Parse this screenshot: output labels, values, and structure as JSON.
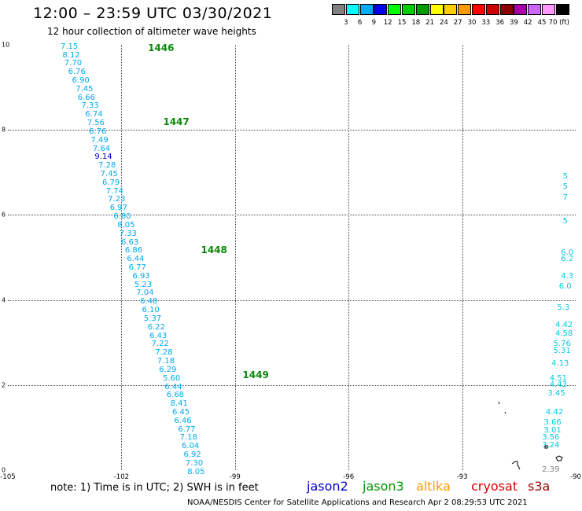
{
  "title": "12:00 – 23:59 UTC 03/30/2021",
  "subtitle": "12 hour collection of altimeter wave heights",
  "colorbar": {
    "colors": [
      "#808080",
      "#00ffff",
      "#00aaff",
      "#0000ee",
      "#00ff00",
      "#00cc00",
      "#009900",
      "#ffff00",
      "#ffcc00",
      "#ff9900",
      "#ff0000",
      "#cc0000",
      "#880000",
      "#aa00aa",
      "#cc66ff",
      "#ff99ff",
      "#000000"
    ],
    "labels": [
      "3",
      "6",
      "9",
      "12",
      "15",
      "18",
      "21",
      "24",
      "27",
      "30",
      "33",
      "36",
      "39",
      "42",
      "45",
      "70 (ft)"
    ]
  },
  "axes": {
    "x_ticks": [
      "-105",
      "-102",
      "-99",
      "-96",
      "-93",
      "-90"
    ],
    "y_ticks": [
      "0",
      "2",
      "4",
      "6",
      "8",
      "10"
    ],
    "xlim": [
      -105,
      -90
    ],
    "ylim": [
      0,
      10
    ]
  },
  "orbits": [
    {
      "label": "1446",
      "lon": -101.3,
      "lat": 9.95
    },
    {
      "label": "1447",
      "lon": -100.9,
      "lat": 8.2
    },
    {
      "label": "1448",
      "lon": -99.9,
      "lat": 5.2
    },
    {
      "label": "1449",
      "lon": -98.8,
      "lat": 2.25
    }
  ],
  "track_main": [
    {
      "v": "7.15",
      "lon": -103.4,
      "lat": 9.95,
      "c": "#00aaee"
    },
    {
      "v": "8.12",
      "lon": -103.35,
      "lat": 9.75,
      "c": "#00aaee"
    },
    {
      "v": "7.70",
      "lon": -103.3,
      "lat": 9.55,
      "c": "#00aaee"
    },
    {
      "v": "6.76",
      "lon": -103.2,
      "lat": 9.35,
      "c": "#00aaee"
    },
    {
      "v": "6.90",
      "lon": -103.1,
      "lat": 9.15,
      "c": "#00aaee"
    },
    {
      "v": "7.45",
      "lon": -103.0,
      "lat": 8.95,
      "c": "#00aaee"
    },
    {
      "v": "6.66",
      "lon": -102.95,
      "lat": 8.75,
      "c": "#00aaee"
    },
    {
      "v": "7.33",
      "lon": -102.85,
      "lat": 8.55,
      "c": "#00aaee"
    },
    {
      "v": "6.74",
      "lon": -102.75,
      "lat": 8.35,
      "c": "#00aaee"
    },
    {
      "v": "7.56",
      "lon": -102.7,
      "lat": 8.15,
      "c": "#00aaee"
    },
    {
      "v": "6.76",
      "lon": -102.65,
      "lat": 7.95,
      "c": "#00aaee"
    },
    {
      "v": "7.49",
      "lon": -102.6,
      "lat": 7.75,
      "c": "#00aaee"
    },
    {
      "v": "7.64",
      "lon": -102.55,
      "lat": 7.55,
      "c": "#00aaee"
    },
    {
      "v": "9.14",
      "lon": -102.5,
      "lat": 7.35,
      "c": "#0000bb"
    },
    {
      "v": "7.28",
      "lon": -102.4,
      "lat": 7.15,
      "c": "#00aaee"
    },
    {
      "v": "7.45",
      "lon": -102.35,
      "lat": 6.95,
      "c": "#00aaee"
    },
    {
      "v": "6.79",
      "lon": -102.3,
      "lat": 6.75,
      "c": "#00aaee"
    },
    {
      "v": "7.74",
      "lon": -102.2,
      "lat": 6.55,
      "c": "#00aaee"
    },
    {
      "v": "7.23",
      "lon": -102.15,
      "lat": 6.35,
      "c": "#00aaee"
    },
    {
      "v": "6.97",
      "lon": -102.1,
      "lat": 6.15,
      "c": "#00aaee"
    },
    {
      "v": "6.80",
      "lon": -102.0,
      "lat": 5.95,
      "c": "#00aaee"
    },
    {
      "v": "8.05",
      "lon": -101.9,
      "lat": 5.75,
      "c": "#00aaee"
    },
    {
      "v": "7.33",
      "lon": -101.85,
      "lat": 5.55,
      "c": "#00aaee"
    },
    {
      "v": "6.63",
      "lon": -101.8,
      "lat": 5.35,
      "c": "#00aaee"
    },
    {
      "v": "6.86",
      "lon": -101.7,
      "lat": 5.15,
      "c": "#00aaee"
    },
    {
      "v": "6.44",
      "lon": -101.65,
      "lat": 4.95,
      "c": "#00aaee"
    },
    {
      "v": "6.77",
      "lon": -101.6,
      "lat": 4.75,
      "c": "#00aaee"
    },
    {
      "v": "6.93",
      "lon": -101.5,
      "lat": 4.55,
      "c": "#00aaee"
    },
    {
      "v": "5.23",
      "lon": -101.45,
      "lat": 4.35,
      "c": "#00aaee"
    },
    {
      "v": "7.04",
      "lon": -101.4,
      "lat": 4.15,
      "c": "#00aaee"
    },
    {
      "v": "6.48",
      "lon": -101.3,
      "lat": 3.95,
      "c": "#00aaee"
    },
    {
      "v": "6.10",
      "lon": -101.25,
      "lat": 3.75,
      "c": "#00aaee"
    },
    {
      "v": "5.37",
      "lon": -101.2,
      "lat": 3.55,
      "c": "#00aaee"
    },
    {
      "v": "6.22",
      "lon": -101.1,
      "lat": 3.35,
      "c": "#00aaee"
    },
    {
      "v": "6.43",
      "lon": -101.05,
      "lat": 3.15,
      "c": "#00aaee"
    },
    {
      "v": "7.22",
      "lon": -101.0,
      "lat": 2.95,
      "c": "#00aaee"
    },
    {
      "v": "7.28",
      "lon": -100.9,
      "lat": 2.75,
      "c": "#00aaee"
    },
    {
      "v": "7.18",
      "lon": -100.85,
      "lat": 2.55,
      "c": "#00aaee"
    },
    {
      "v": "6.29",
      "lon": -100.8,
      "lat": 2.35,
      "c": "#00aaee"
    },
    {
      "v": "5.60",
      "lon": -100.7,
      "lat": 2.15,
      "c": "#00aaee"
    },
    {
      "v": "6.44",
      "lon": -100.65,
      "lat": 1.95,
      "c": "#00aaee"
    },
    {
      "v": "6.68",
      "lon": -100.6,
      "lat": 1.75,
      "c": "#00aaee"
    },
    {
      "v": "8.41",
      "lon": -100.5,
      "lat": 1.55,
      "c": "#00aaee"
    },
    {
      "v": "6.45",
      "lon": -100.45,
      "lat": 1.35,
      "c": "#00aaee"
    },
    {
      "v": "6.46",
      "lon": -100.4,
      "lat": 1.15,
      "c": "#00aaee"
    },
    {
      "v": "6.77",
      "lon": -100.3,
      "lat": 0.95,
      "c": "#00aaee"
    },
    {
      "v": "7.18",
      "lon": -100.25,
      "lat": 0.75,
      "c": "#00aaee"
    },
    {
      "v": "6.04",
      "lon": -100.2,
      "lat": 0.55,
      "c": "#00aaee"
    },
    {
      "v": "6.92",
      "lon": -100.15,
      "lat": 0.35,
      "c": "#00aaee"
    },
    {
      "v": "7.30",
      "lon": -100.1,
      "lat": 0.15,
      "c": "#00aaee"
    },
    {
      "v": "8.05",
      "lon": -100.05,
      "lat": -0.05,
      "c": "#00aaee"
    }
  ],
  "track_east": [
    {
      "v": "5",
      "lon": -90.05,
      "lat": 6.9
    },
    {
      "v": "5",
      "lon": -90.05,
      "lat": 6.65
    },
    {
      "v": "7",
      "lon": -90.05,
      "lat": 6.4
    },
    {
      "v": "5",
      "lon": -90.05,
      "lat": 5.85
    },
    {
      "v": "6.0",
      "lon": -90.1,
      "lat": 5.1
    },
    {
      "v": "6.2",
      "lon": -90.1,
      "lat": 4.95
    },
    {
      "v": "4.3",
      "lon": -90.1,
      "lat": 4.55
    },
    {
      "v": "6.0",
      "lon": -90.15,
      "lat": 4.3
    },
    {
      "v": "5.3",
      "lon": -90.2,
      "lat": 3.8
    },
    {
      "v": "4.42",
      "lon": -90.25,
      "lat": 3.4
    },
    {
      "v": "4.58",
      "lon": -90.25,
      "lat": 3.2
    },
    {
      "v": "5.76",
      "lon": -90.3,
      "lat": 2.95
    },
    {
      "v": "5.31",
      "lon": -90.3,
      "lat": 2.8
    },
    {
      "v": "4.13",
      "lon": -90.35,
      "lat": 2.5
    },
    {
      "v": "4.51",
      "lon": -90.4,
      "lat": 2.15
    },
    {
      "v": "4.43",
      "lon": -90.4,
      "lat": 2.0
    },
    {
      "v": "3.45",
      "lon": -90.45,
      "lat": 1.8
    },
    {
      "v": "4.42",
      "lon": -90.5,
      "lat": 1.35
    },
    {
      "v": "3.66",
      "lon": -90.55,
      "lat": 1.1
    },
    {
      "v": "3.01",
      "lon": -90.55,
      "lat": 0.92
    },
    {
      "v": "3.56",
      "lon": -90.6,
      "lat": 0.75
    },
    {
      "v": "3.24",
      "lon": -90.6,
      "lat": 0.58
    }
  ],
  "point_gray": {
    "v": "2.39",
    "lon": -90.6,
    "lat": 0.0
  },
  "note": "note:  1) Time is in UTC;  2) SWH is in feet",
  "legend": [
    {
      "name": "jason2",
      "color": "#0000cc"
    },
    {
      "name": "jason3",
      "color": "#009900"
    },
    {
      "name": "altika",
      "color": "#ff9900"
    },
    {
      "name": "cryosat",
      "color": "#dd0000"
    },
    {
      "name": "s3a",
      "color": "#990000"
    }
  ],
  "footer": "NOAA/NESDIS Center for Satellite Applications and Research   Apr  2 08:29:53 UTC 2021"
}
